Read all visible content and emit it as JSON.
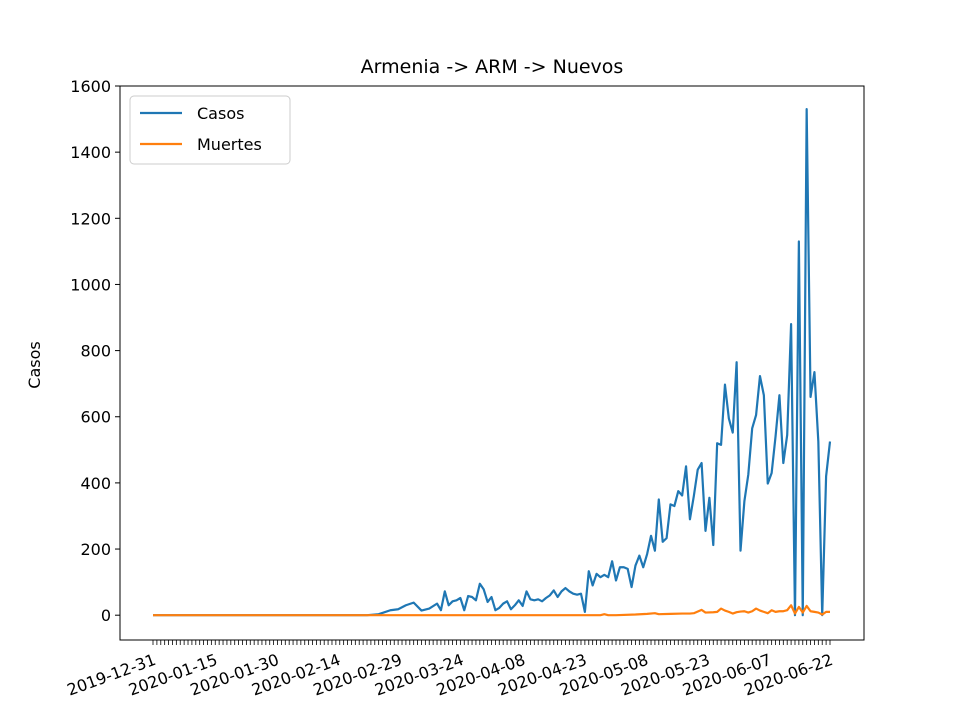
{
  "chart_data": {
    "type": "line",
    "title": "Armenia -> ARM -> Nuevos",
    "xlabel": "",
    "ylabel": "Casos",
    "ylim": [
      -75,
      1600
    ],
    "yticks": [
      0,
      200,
      400,
      600,
      800,
      1000,
      1200,
      1400,
      1600
    ],
    "x_start": "2019-12-31",
    "x_end": "2020-06-22",
    "xtick_labels": [
      "2019-12-31",
      "2020-01-15",
      "2020-01-30",
      "2020-02-14",
      "2020-02-29",
      "2020-03-24",
      "2020-04-08",
      "2020-04-23",
      "2020-05-08",
      "2020-05-23",
      "2020-06-07",
      "2020-06-22"
    ],
    "legend": "top-left",
    "grid": false,
    "series": [
      {
        "name": "Casos",
        "color": "#1f77b4",
        "points": [
          [
            "2019-12-31",
            0
          ],
          [
            "2020-02-21",
            0
          ],
          [
            "2020-02-24",
            0
          ],
          [
            "2020-02-27",
            3
          ],
          [
            "2020-03-01",
            15
          ],
          [
            "2020-03-03",
            18
          ],
          [
            "2020-03-05",
            30
          ],
          [
            "2020-03-07",
            38
          ],
          [
            "2020-03-09",
            14
          ],
          [
            "2020-03-11",
            20
          ],
          [
            "2020-03-13",
            35
          ],
          [
            "2020-03-14",
            15
          ],
          [
            "2020-03-15",
            72
          ],
          [
            "2020-03-16",
            30
          ],
          [
            "2020-03-17",
            42
          ],
          [
            "2020-03-18",
            45
          ],
          [
            "2020-03-19",
            52
          ],
          [
            "2020-03-20",
            15
          ],
          [
            "2020-03-21",
            58
          ],
          [
            "2020-03-22",
            55
          ],
          [
            "2020-03-23",
            45
          ],
          [
            "2020-03-24",
            95
          ],
          [
            "2020-03-25",
            78
          ],
          [
            "2020-03-26",
            40
          ],
          [
            "2020-03-27",
            55
          ],
          [
            "2020-03-28",
            15
          ],
          [
            "2020-03-29",
            22
          ],
          [
            "2020-03-30",
            35
          ],
          [
            "2020-03-31",
            42
          ],
          [
            "2020-04-01",
            18
          ],
          [
            "2020-04-02",
            30
          ],
          [
            "2020-04-03",
            45
          ],
          [
            "2020-04-04",
            28
          ],
          [
            "2020-04-05",
            72
          ],
          [
            "2020-04-06",
            48
          ],
          [
            "2020-04-07",
            45
          ],
          [
            "2020-04-08",
            48
          ],
          [
            "2020-04-09",
            42
          ],
          [
            "2020-04-10",
            52
          ],
          [
            "2020-04-11",
            60
          ],
          [
            "2020-04-12",
            75
          ],
          [
            "2020-04-13",
            55
          ],
          [
            "2020-04-14",
            72
          ],
          [
            "2020-04-15",
            82
          ],
          [
            "2020-04-16",
            72
          ],
          [
            "2020-04-17",
            65
          ],
          [
            "2020-04-18",
            62
          ],
          [
            "2020-04-19",
            65
          ],
          [
            "2020-04-20",
            10
          ],
          [
            "2020-04-21",
            133
          ],
          [
            "2020-04-22",
            90
          ],
          [
            "2020-04-23",
            125
          ],
          [
            "2020-04-24",
            115
          ],
          [
            "2020-04-25",
            122
          ],
          [
            "2020-04-26",
            115
          ],
          [
            "2020-04-27",
            163
          ],
          [
            "2020-04-28",
            105
          ],
          [
            "2020-04-29",
            145
          ],
          [
            "2020-04-30",
            145
          ],
          [
            "2020-05-01",
            140
          ],
          [
            "2020-05-02",
            85
          ],
          [
            "2020-05-03",
            150
          ],
          [
            "2020-05-04",
            180
          ],
          [
            "2020-05-05",
            145
          ],
          [
            "2020-05-06",
            185
          ],
          [
            "2020-05-07",
            240
          ],
          [
            "2020-05-08",
            195
          ],
          [
            "2020-05-09",
            350
          ],
          [
            "2020-05-10",
            222
          ],
          [
            "2020-05-11",
            233
          ],
          [
            "2020-05-12",
            335
          ],
          [
            "2020-05-13",
            330
          ],
          [
            "2020-05-14",
            375
          ],
          [
            "2020-05-15",
            362
          ],
          [
            "2020-05-16",
            450
          ],
          [
            "2020-05-17",
            290
          ],
          [
            "2020-05-18",
            360
          ],
          [
            "2020-05-19",
            440
          ],
          [
            "2020-05-20",
            460
          ],
          [
            "2020-05-21",
            255
          ],
          [
            "2020-05-22",
            355
          ],
          [
            "2020-05-23",
            212
          ],
          [
            "2020-05-24",
            520
          ],
          [
            "2020-05-25",
            515
          ],
          [
            "2020-05-26",
            697
          ],
          [
            "2020-05-27",
            595
          ],
          [
            "2020-05-28",
            552
          ],
          [
            "2020-05-29",
            765
          ],
          [
            "2020-05-30",
            195
          ],
          [
            "2020-05-31",
            345
          ],
          [
            "2020-06-01",
            425
          ],
          [
            "2020-06-02",
            565
          ],
          [
            "2020-06-03",
            605
          ],
          [
            "2020-06-04",
            723
          ],
          [
            "2020-06-05",
            665
          ],
          [
            "2020-06-06",
            398
          ],
          [
            "2020-06-07",
            430
          ],
          [
            "2020-06-08",
            540
          ],
          [
            "2020-06-09",
            665
          ],
          [
            "2020-06-10",
            460
          ],
          [
            "2020-06-11",
            545
          ],
          [
            "2020-06-12",
            880
          ],
          [
            "2020-06-13",
            0
          ],
          [
            "2020-06-14",
            1130
          ],
          [
            "2020-06-15",
            0
          ],
          [
            "2020-06-16",
            1530
          ],
          [
            "2020-06-17",
            660
          ],
          [
            "2020-06-18",
            735
          ],
          [
            "2020-06-19",
            525
          ],
          [
            "2020-06-20",
            0
          ],
          [
            "2020-06-21",
            420
          ],
          [
            "2020-06-22",
            525
          ]
        ]
      },
      {
        "name": "Muertes",
        "color": "#ff7f0e",
        "points": [
          [
            "2019-12-31",
            0
          ],
          [
            "2020-04-23",
            0
          ],
          [
            "2020-04-24",
            0
          ],
          [
            "2020-04-25",
            3
          ],
          [
            "2020-04-26",
            0
          ],
          [
            "2020-04-28",
            0
          ],
          [
            "2020-05-03",
            2
          ],
          [
            "2020-05-06",
            4
          ],
          [
            "2020-05-08",
            6
          ],
          [
            "2020-05-09",
            3
          ],
          [
            "2020-05-12",
            4
          ],
          [
            "2020-05-15",
            5
          ],
          [
            "2020-05-17",
            5
          ],
          [
            "2020-05-18",
            6
          ],
          [
            "2020-05-20",
            16
          ],
          [
            "2020-05-21",
            8
          ],
          [
            "2020-05-23",
            9
          ],
          [
            "2020-05-24",
            10
          ],
          [
            "2020-05-25",
            20
          ],
          [
            "2020-05-26",
            14
          ],
          [
            "2020-05-27",
            10
          ],
          [
            "2020-05-28",
            5
          ],
          [
            "2020-05-29",
            9
          ],
          [
            "2020-05-30",
            11
          ],
          [
            "2020-05-31",
            12
          ],
          [
            "2020-06-01",
            8
          ],
          [
            "2020-06-02",
            12
          ],
          [
            "2020-06-03",
            20
          ],
          [
            "2020-06-04",
            14
          ],
          [
            "2020-06-05",
            10
          ],
          [
            "2020-06-06",
            6
          ],
          [
            "2020-06-07",
            15
          ],
          [
            "2020-06-08",
            10
          ],
          [
            "2020-06-09",
            12
          ],
          [
            "2020-06-10",
            12
          ],
          [
            "2020-06-11",
            15
          ],
          [
            "2020-06-12",
            30
          ],
          [
            "2020-06-13",
            5
          ],
          [
            "2020-06-14",
            25
          ],
          [
            "2020-06-15",
            8
          ],
          [
            "2020-06-16",
            28
          ],
          [
            "2020-06-17",
            12
          ],
          [
            "2020-06-18",
            10
          ],
          [
            "2020-06-19",
            8
          ],
          [
            "2020-06-20",
            2
          ],
          [
            "2020-06-21",
            10
          ],
          [
            "2020-06-22",
            10
          ]
        ]
      }
    ]
  }
}
